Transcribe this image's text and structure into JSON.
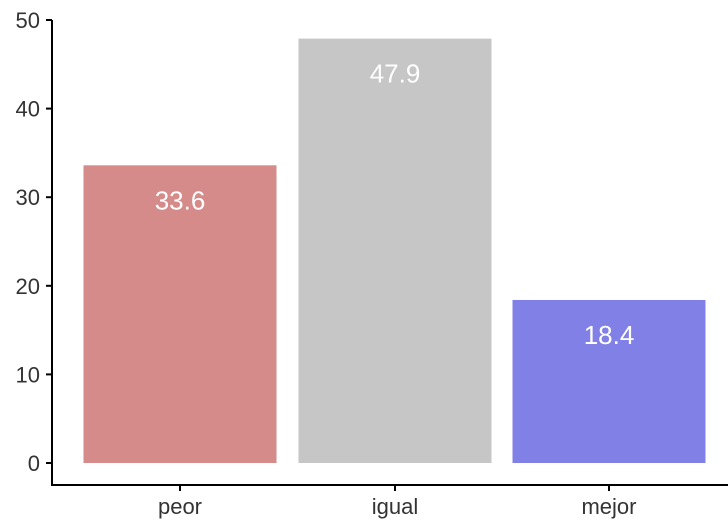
{
  "chart_data": {
    "type": "bar",
    "categories": [
      "peor",
      "igual",
      "mejor"
    ],
    "values": [
      33.6,
      47.9,
      18.4
    ],
    "value_labels": [
      "33.6",
      "47.9",
      "18.4"
    ],
    "colors": [
      "#d68b8b",
      "#c6c6c6",
      "#8080e6"
    ],
    "title": "",
    "xlabel": "",
    "ylabel": "",
    "ylim": [
      0,
      50
    ],
    "yticks": [
      0,
      10,
      20,
      30,
      40,
      50
    ],
    "ytick_labels": [
      "0",
      "10",
      "20",
      "30",
      "40",
      "50"
    ],
    "grid": false,
    "legend": "none"
  }
}
